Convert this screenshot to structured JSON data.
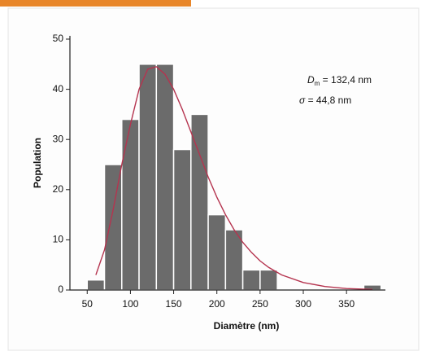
{
  "chart_data": {
    "type": "histogram",
    "x_label": "Diamètre (nm)",
    "y_label": "Population",
    "bins": [
      50,
      70,
      90,
      110,
      130,
      150,
      170,
      190,
      210,
      230,
      250,
      270,
      290,
      310,
      330,
      350,
      370,
      390
    ],
    "counts": [
      2,
      25,
      34,
      45,
      45,
      28,
      35,
      15,
      12,
      4,
      4,
      0,
      0,
      0,
      0,
      0,
      1
    ],
    "color": "#6b6b6b",
    "fit": {
      "color": "#b5344f",
      "x": [
        60,
        70,
        80,
        90,
        100,
        110,
        120,
        130,
        140,
        150,
        160,
        170,
        180,
        190,
        200,
        210,
        220,
        230,
        240,
        250,
        260,
        275,
        300,
        325,
        350,
        380
      ],
      "values": [
        3,
        8,
        16,
        25,
        33,
        40,
        44,
        44.5,
        43,
        40,
        36,
        31.5,
        27,
        22.5,
        18.5,
        15,
        12,
        9.5,
        7.5,
        5.8,
        4.5,
        3,
        1.5,
        0.7,
        0.3,
        0.1
      ]
    },
    "annotations": [
      {
        "symbol": "D",
        "subscript": "m",
        "text": " = 132,4 nm"
      },
      {
        "symbol": "σ",
        "text": " = 44,8 nm"
      }
    ],
    "xlim": [
      30,
      395
    ],
    "ylim": [
      0,
      50
    ],
    "xticks": [
      50,
      100,
      150,
      200,
      250,
      300,
      350
    ],
    "yticks": [
      0,
      10,
      20,
      30,
      40,
      50
    ]
  }
}
